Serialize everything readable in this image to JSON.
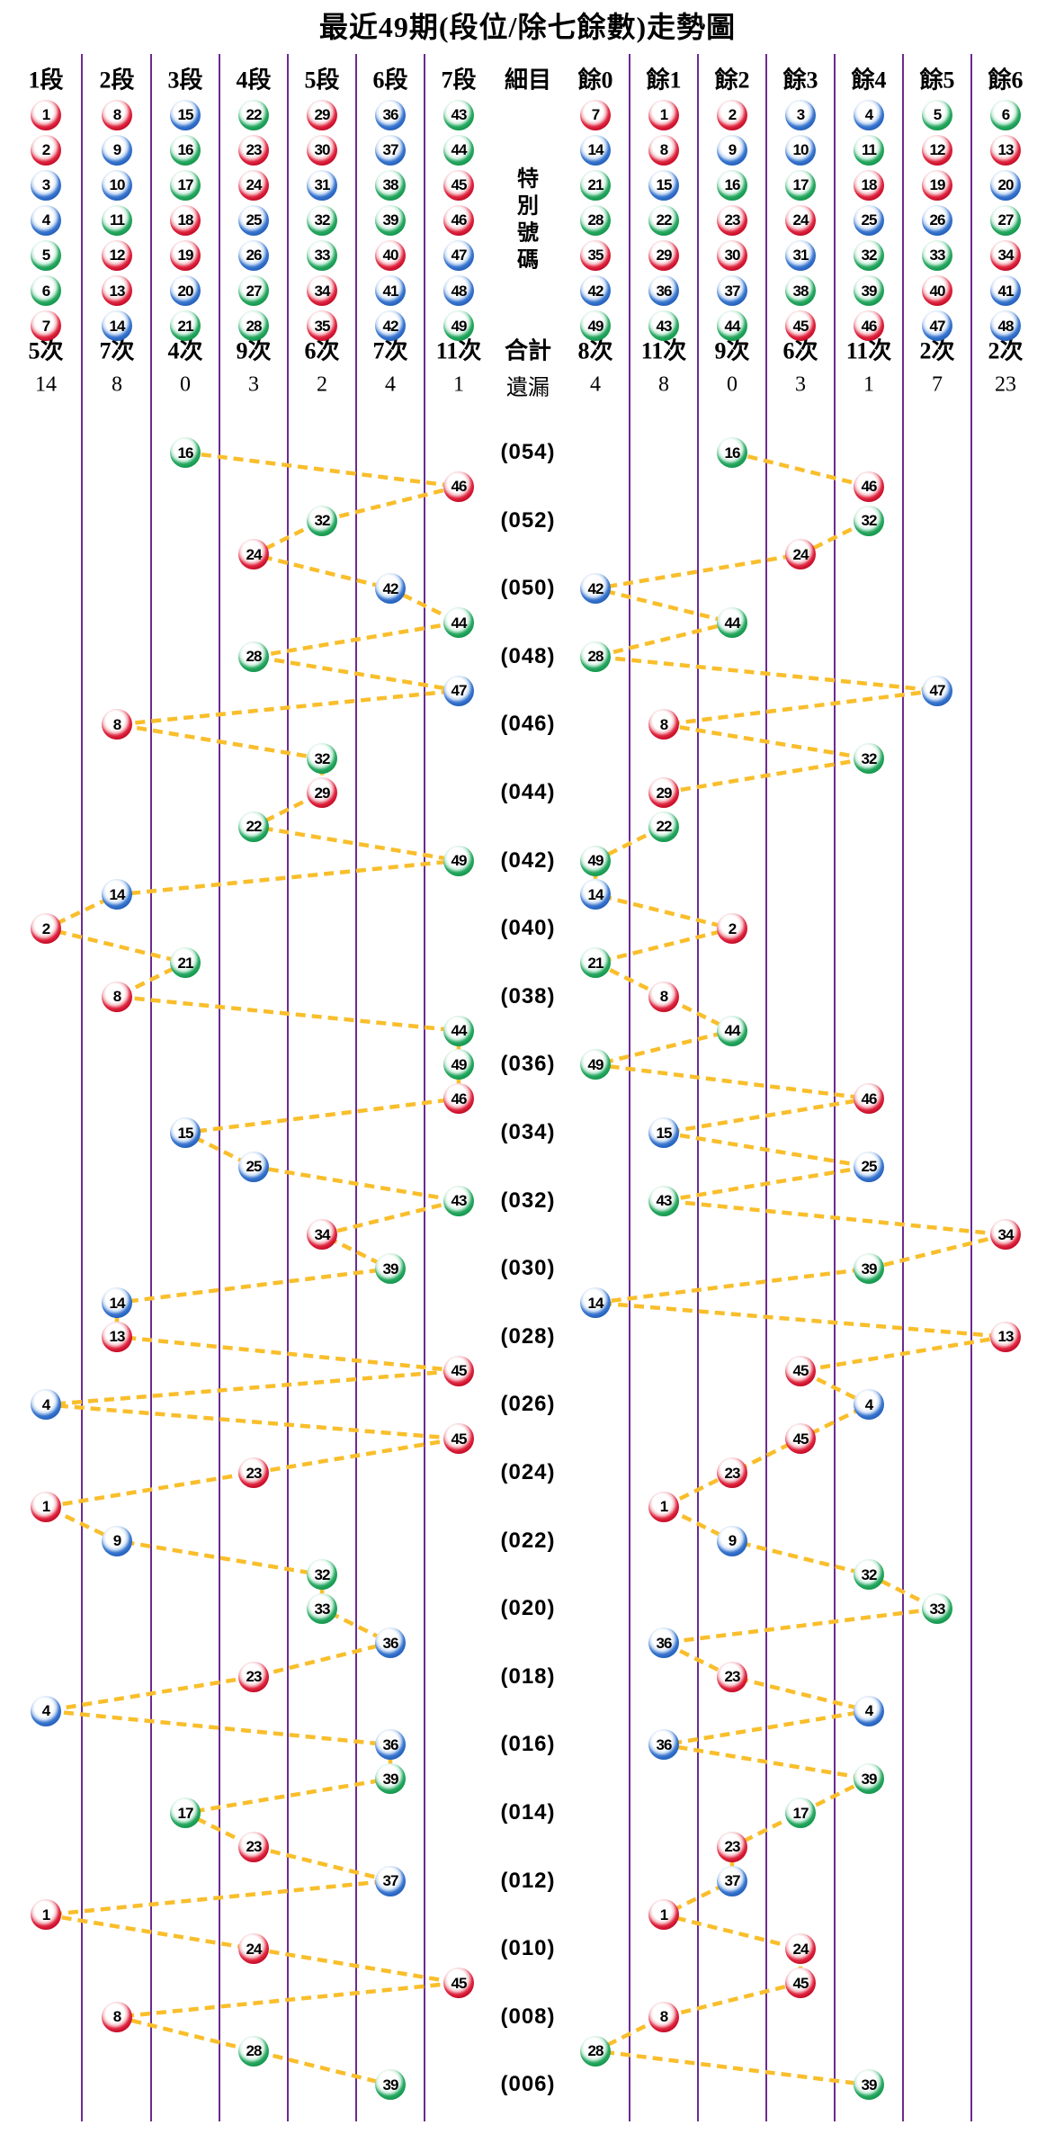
{
  "title": "最近49期(段位/除七餘數)走勢圖",
  "header": {
    "columns": [
      {
        "label": "1段",
        "balls": [
          1,
          2,
          3,
          4,
          5,
          6,
          7
        ],
        "count": "5次",
        "miss": "14"
      },
      {
        "label": "2段",
        "balls": [
          8,
          9,
          10,
          11,
          12,
          13,
          14
        ],
        "count": "7次",
        "miss": "8"
      },
      {
        "label": "3段",
        "balls": [
          15,
          16,
          17,
          18,
          19,
          20,
          21
        ],
        "count": "4次",
        "miss": "0"
      },
      {
        "label": "4段",
        "balls": [
          22,
          23,
          24,
          25,
          26,
          27,
          28
        ],
        "count": "9次",
        "miss": "3"
      },
      {
        "label": "5段",
        "balls": [
          29,
          30,
          31,
          32,
          33,
          34,
          35
        ],
        "count": "6次",
        "miss": "2"
      },
      {
        "label": "6段",
        "balls": [
          36,
          37,
          38,
          39,
          40,
          41,
          42
        ],
        "count": "7次",
        "miss": "4"
      },
      {
        "label": "7段",
        "balls": [
          43,
          44,
          45,
          46,
          47,
          48,
          49
        ],
        "count": "11次",
        "miss": "1"
      },
      {
        "label": "細目",
        "detail": true,
        "vertical_text": "特別號碼",
        "count": "合計",
        "miss": "遺漏"
      },
      {
        "label": "餘0",
        "balls": [
          7,
          14,
          21,
          28,
          35,
          42,
          49
        ],
        "count": "8次",
        "miss": "4"
      },
      {
        "label": "餘1",
        "balls": [
          1,
          8,
          15,
          22,
          29,
          36,
          43
        ],
        "count": "11次",
        "miss": "8"
      },
      {
        "label": "餘2",
        "balls": [
          2,
          9,
          16,
          23,
          30,
          37,
          44
        ],
        "count": "9次",
        "miss": "0"
      },
      {
        "label": "餘3",
        "balls": [
          3,
          10,
          17,
          24,
          31,
          38,
          45
        ],
        "count": "6次",
        "miss": "3"
      },
      {
        "label": "餘4",
        "balls": [
          4,
          11,
          18,
          25,
          32,
          39,
          46
        ],
        "count": "11次",
        "miss": "1"
      },
      {
        "label": "餘5",
        "balls": [
          5,
          12,
          19,
          26,
          33,
          40,
          47
        ],
        "count": "2次",
        "miss": "7"
      },
      {
        "label": "餘6",
        "balls": [
          6,
          13,
          20,
          27,
          34,
          41,
          48
        ],
        "count": "2次",
        "miss": "23"
      }
    ]
  },
  "chart_data": {
    "type": "scatter",
    "title": "最近49期(段位/除七餘數)走勢圖",
    "description": "Special number of each of the last 49 draws, plotted by segment-of-seven (left half, 1段-7段) and by mod-7 remainder (right half, 餘0-餘6); consecutive draws joined by dashed lines. Period labels shown for even periods only.",
    "left_columns": [
      "1段",
      "2段",
      "3段",
      "4段",
      "5段",
      "6段",
      "7段"
    ],
    "right_columns": [
      "餘0",
      "餘1",
      "餘2",
      "餘3",
      "餘4",
      "餘5",
      "餘6"
    ],
    "period_labels_shown": [
      "(054)",
      "(052)",
      "(050)",
      "(048)",
      "(046)",
      "(044)",
      "(042)",
      "(040)",
      "(038)",
      "(036)",
      "(034)",
      "(032)",
      "(030)",
      "(028)",
      "(026)",
      "(024)",
      "(022)",
      "(020)",
      "(018)",
      "(016)",
      "(014)",
      "(012)",
      "(010)",
      "(008)",
      "(006)"
    ],
    "periods": [
      {
        "period": 54,
        "number": 16
      },
      {
        "period": 53,
        "number": 46
      },
      {
        "period": 52,
        "number": 32
      },
      {
        "period": 51,
        "number": 24
      },
      {
        "period": 50,
        "number": 42
      },
      {
        "period": 49,
        "number": 44
      },
      {
        "period": 48,
        "number": 28
      },
      {
        "period": 47,
        "number": 47
      },
      {
        "period": 46,
        "number": 8
      },
      {
        "period": 45,
        "number": 32
      },
      {
        "period": 44,
        "number": 29
      },
      {
        "period": 43,
        "number": 22
      },
      {
        "period": 42,
        "number": 49
      },
      {
        "period": 41,
        "number": 14
      },
      {
        "period": 40,
        "number": 2
      },
      {
        "period": 39,
        "number": 21
      },
      {
        "period": 38,
        "number": 8
      },
      {
        "period": 37,
        "number": 44
      },
      {
        "period": 36,
        "number": 49
      },
      {
        "period": 35,
        "number": 46
      },
      {
        "period": 34,
        "number": 15
      },
      {
        "period": 33,
        "number": 25
      },
      {
        "period": 32,
        "number": 43
      },
      {
        "period": 31,
        "number": 34
      },
      {
        "period": 30,
        "number": 39
      },
      {
        "period": 29,
        "number": 14
      },
      {
        "period": 28,
        "number": 13
      },
      {
        "period": 27,
        "number": 45
      },
      {
        "period": 26,
        "number": 4
      },
      {
        "period": 25,
        "number": 45
      },
      {
        "period": 24,
        "number": 23
      },
      {
        "period": 23,
        "number": 1
      },
      {
        "period": 22,
        "number": 9
      },
      {
        "period": 21,
        "number": 32
      },
      {
        "period": 20,
        "number": 33
      },
      {
        "period": 19,
        "number": 36
      },
      {
        "period": 18,
        "number": 23
      },
      {
        "period": 17,
        "number": 4
      },
      {
        "period": 16,
        "number": 36
      },
      {
        "period": 15,
        "number": 39
      },
      {
        "period": 14,
        "number": 17
      },
      {
        "period": 13,
        "number": 23
      },
      {
        "period": 12,
        "number": 37
      },
      {
        "period": 11,
        "number": 1
      },
      {
        "period": 10,
        "number": 24
      },
      {
        "period": 9,
        "number": 45
      },
      {
        "period": 8,
        "number": 8
      },
      {
        "period": 7,
        "number": 28
      },
      {
        "period": 6,
        "number": 39
      }
    ]
  },
  "ball_colors": {
    "red": [
      1,
      2,
      7,
      8,
      12,
      13,
      18,
      19,
      23,
      24,
      29,
      30,
      34,
      35,
      40,
      45,
      46
    ],
    "blue": [
      3,
      4,
      9,
      10,
      14,
      15,
      20,
      25,
      26,
      31,
      36,
      37,
      41,
      42,
      47,
      48
    ],
    "green": [
      5,
      6,
      11,
      16,
      17,
      21,
      22,
      27,
      28,
      32,
      33,
      38,
      39,
      43,
      44,
      49
    ]
  },
  "colors": {
    "red": "#c00622",
    "blue": "#1f5cb8",
    "green": "#0f9448",
    "grid_line": "#6A2C91",
    "connector": "#F9BE2B",
    "text": "#000000",
    "background": "#FFFFFF"
  }
}
